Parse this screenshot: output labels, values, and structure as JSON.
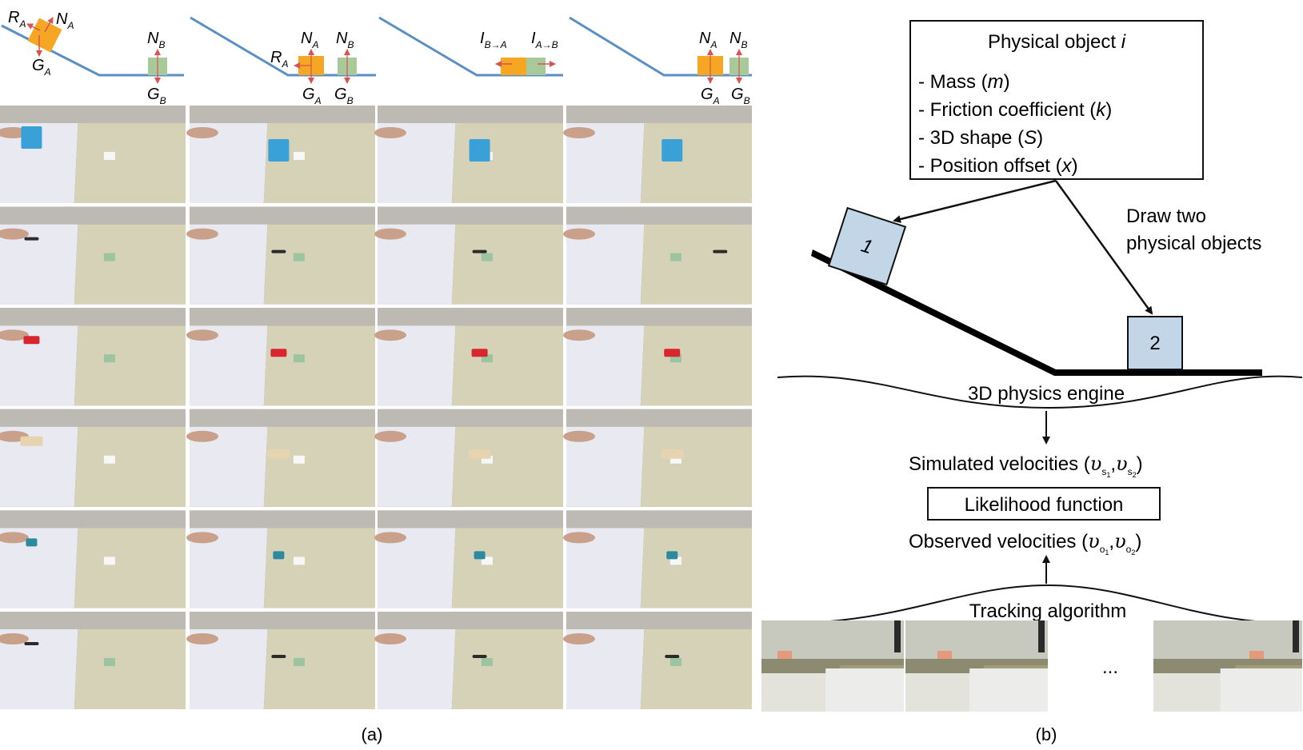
{
  "panel_a": {
    "caption": "(a)",
    "schematics": [
      {
        "labels": {
          "R": "R",
          "R_sub": "A",
          "NA": "N",
          "NA_sub": "A",
          "GA": "G",
          "GA_sub": "A",
          "NB": "N",
          "NB_sub": "B",
          "GB": "G",
          "GB_sub": "B"
        }
      },
      {
        "labels": {
          "R": "R",
          "R_sub": "A",
          "NA": "N",
          "NA_sub": "A",
          "NB": "N",
          "NB_sub": "B",
          "GA": "G",
          "GA_sub": "A",
          "GB": "G",
          "GB_sub": "B"
        }
      },
      {
        "labels": {
          "IBA": "I",
          "IBA_sub": "B→A",
          "IAB": "I",
          "IAB_sub": "A→B"
        }
      },
      {
        "labels": {
          "NA": "N",
          "NA_sub": "A",
          "NB": "N",
          "NB_sub": "B",
          "GA": "G",
          "GA_sub": "A",
          "GB": "G",
          "GB_sub": "B"
        }
      }
    ],
    "colors": {
      "incline": "#5b8fc4",
      "object_a": "#f5a623",
      "object_b": "#a8c99a",
      "force_arrow": "#d9534f"
    },
    "rows": [
      {
        "object": "toy-box",
        "color": "#3aa0d8"
      },
      {
        "object": "pen",
        "color": "#2b2b2b"
      },
      {
        "object": "red-can",
        "color": "#d8262e"
      },
      {
        "object": "wooden-block",
        "color": "#e6d3b0"
      },
      {
        "object": "teal-eraser",
        "color": "#2c8aa0"
      },
      {
        "object": "pen",
        "color": "#2b2b2b"
      }
    ]
  },
  "panel_b": {
    "caption": "(b)",
    "object_box": {
      "title": "Physical object ",
      "title_var": "i",
      "items": [
        {
          "text": "- Mass (",
          "var": "m",
          "end": ")"
        },
        {
          "text": "- Friction coefficient (",
          "var": "k",
          "end": ")"
        },
        {
          "text": "- 3D shape (",
          "var": "S",
          "end": ")"
        },
        {
          "text": "- Position offset (",
          "var": "x",
          "end": ")"
        }
      ]
    },
    "draw_label_line1": "Draw two",
    "draw_label_line2": "physical objects",
    "object1_label": "1",
    "object2_label": "2",
    "engine_label": "3D physics engine",
    "simulated": {
      "text": "Simulated velocities (",
      "v": "υ",
      "s1": "s",
      "s1_sub": "1",
      "s2_sub": "2",
      "end": ")"
    },
    "likelihood_label": "Likelihood function",
    "observed": {
      "text": "Observed velocities (",
      "v": "υ",
      "o": "o",
      "o1_sub": "1",
      "o2_sub": "2",
      "end": ")"
    },
    "tracking_label": "Tracking algorithm",
    "ellipsis": "...",
    "colors": {
      "object_fill": "#c3d6e8"
    }
  }
}
